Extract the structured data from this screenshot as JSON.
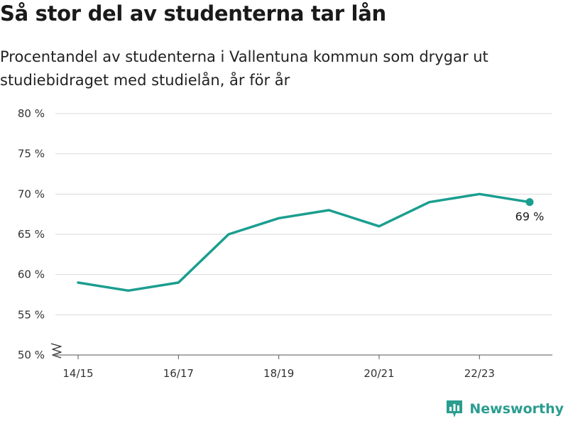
{
  "header": {
    "title": "Så stor del av studenterna tar lån",
    "subtitle": "Procentandel av studenterna i Vallentuna kommun som drygar ut studiebidraget med studielån, år för år"
  },
  "colors": {
    "line": "#1a9e8f",
    "grid": "#d9d9d9",
    "axis": "#555555",
    "brand": "#2a9d8f"
  },
  "brand": {
    "name": "Newsworthy",
    "icon": "newsworthy-logo-icon"
  },
  "chart_data": {
    "type": "line",
    "title": "Så stor del av studenterna tar lån",
    "subtitle": "Procentandel av studenterna i Vallentuna kommun som drygar ut studiebidraget med studielån, år för år",
    "x": [
      "14/15",
      "15/16",
      "16/17",
      "17/18",
      "18/19",
      "19/20",
      "20/21",
      "21/22",
      "22/23",
      "23/24"
    ],
    "values": [
      59,
      58,
      59,
      65,
      67,
      68,
      66,
      69,
      70,
      69
    ],
    "x_tick_labels": [
      "14/15",
      "16/17",
      "18/19",
      "20/21",
      "22/23"
    ],
    "y_ticks": [
      50,
      55,
      60,
      65,
      70,
      75,
      80
    ],
    "y_tick_labels": [
      "50 %",
      "55 %",
      "60 %",
      "65 %",
      "70 %",
      "75 %",
      "80 %"
    ],
    "ylim": [
      50,
      80
    ],
    "y_axis_break": true,
    "grid": true,
    "end_label": "69 %"
  }
}
